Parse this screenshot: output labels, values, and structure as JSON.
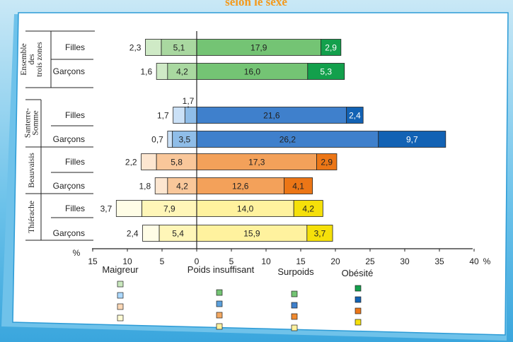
{
  "title_fragment": "selon le sexe",
  "chart_data": {
    "type": "bar",
    "orientation": "horizontal-diverging",
    "xlabel": "%",
    "x_ticks": [
      "15",
      "10",
      "5",
      "0",
      "5",
      "10",
      "15",
      "20",
      "25",
      "30",
      "35",
      "40"
    ],
    "xlim": [
      -15,
      40
    ],
    "legend": {
      "categories": [
        "Maigreur",
        "Poids insuffisant",
        "Surpoids",
        "Obésité"
      ],
      "position": "bottom",
      "swatches": [
        [
          "#c9e7bd",
          "#acd9ff",
          "#fcd8b6",
          "#fffbd4"
        ],
        [
          "#74c474",
          "#5ba0dc",
          "#f3a861",
          "#fff29e"
        ],
        [
          "#74c474",
          "#3f80cc",
          "#f08a2f",
          "#fff29e"
        ],
        [
          "#13a04c",
          "#1262b4",
          "#ec7616",
          "#f5e00a"
        ]
      ]
    },
    "groups": [
      {
        "label": "Ensemble des trois zones",
        "label_lines": [
          "Ensemble",
          "des",
          "trois zones"
        ],
        "rows": [
          {
            "sex": "Filles",
            "maigreur": 2.3,
            "poids_insuffisant": 5.1,
            "surpoids": 17.9,
            "obesite": 2.9,
            "labels": [
              "2,3",
              "5,1",
              "17,9",
              "2,9"
            ]
          },
          {
            "sex": "Garçons",
            "maigreur": 1.6,
            "poids_insuffisant": 4.2,
            "surpoids": 16.0,
            "obesite": 5.3,
            "labels": [
              "1,6",
              "4,2",
              "16,0",
              "5,3"
            ]
          }
        ],
        "colors": {
          "maigreur": "#cfeac6",
          "poids_insuffisant": "#a9d8a0",
          "surpoids": "#74c474",
          "obesite": "#13a04c"
        }
      },
      {
        "label": "Santerre-Somme",
        "label_lines": [
          "Santerre-",
          "Somme"
        ],
        "extra_label": "1,7",
        "rows": [
          {
            "sex": "Filles",
            "maigreur": 1.7,
            "poids_insuffisant": 1.7,
            "surpoids": 21.6,
            "obesite": 2.4,
            "labels": [
              "1,7",
              "",
              "21,6",
              "2,4"
            ]
          },
          {
            "sex": "Garçons",
            "maigreur": 0.7,
            "poids_insuffisant": 3.5,
            "surpoids": 26.2,
            "obesite": 9.7,
            "labels": [
              "0,7",
              "3,5",
              "26,2",
              "9,7"
            ]
          }
        ],
        "colors": {
          "maigreur": "#cbe1f7",
          "poids_insuffisant": "#8fbde8",
          "surpoids": "#3f80cc",
          "obesite": "#1262b4"
        }
      },
      {
        "label": "Beauvaisis",
        "label_lines": [
          "Beauvaisis"
        ],
        "rows": [
          {
            "sex": "Filles",
            "maigreur": 2.2,
            "poids_insuffisant": 5.8,
            "surpoids": 17.3,
            "obesite": 2.9,
            "labels": [
              "2,2",
              "5,8",
              "17,3",
              "2,9"
            ]
          },
          {
            "sex": "Garçons",
            "maigreur": 1.8,
            "poids_insuffisant": 4.2,
            "surpoids": 12.6,
            "obesite": 4.1,
            "labels": [
              "1,8",
              "4,2",
              "12,6",
              "4,1"
            ]
          }
        ],
        "colors": {
          "maigreur": "#fde6d0",
          "poids_insuffisant": "#f9c79a",
          "surpoids": "#f3a15a",
          "obesite": "#ec7616"
        }
      },
      {
        "label": "Thiérache",
        "label_lines": [
          "Thiérache"
        ],
        "rows": [
          {
            "sex": "Filles",
            "maigreur": 3.7,
            "poids_insuffisant": 7.9,
            "surpoids": 14.0,
            "obesite": 4.2,
            "labels": [
              "3,7",
              "7,9",
              "14,0",
              "4,2"
            ]
          },
          {
            "sex": "Garçons",
            "maigreur": 2.4,
            "poids_insuffisant": 5.4,
            "surpoids": 15.9,
            "obesite": 3.7,
            "labels": [
              "2,4",
              "5,4",
              "15,9",
              "3,7"
            ]
          }
        ],
        "colors": {
          "maigreur": "#fffde6",
          "poids_insuffisant": "#fff6b8",
          "surpoids": "#fff29e",
          "obesite": "#f5e00a"
        }
      }
    ]
  }
}
